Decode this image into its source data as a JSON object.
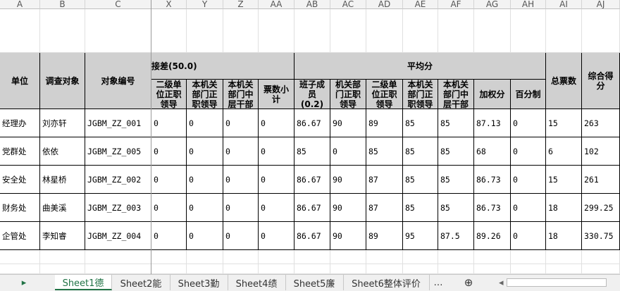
{
  "column_letters": [
    "A",
    "B",
    "C",
    "X",
    "Y",
    "Z",
    "AA",
    "AB",
    "AC",
    "AD",
    "AE",
    "AF",
    "AG",
    "AH",
    "AI",
    "AJ"
  ],
  "headers": {
    "unit": "单位",
    "subject": "调查对象",
    "code": "对象编号",
    "group_left": "接差(50.0)",
    "group_avg": "平均分",
    "total_votes": "总票数",
    "overall": "综合得分",
    "sub": [
      "二级单位正职领导",
      "本机关部门正职领导",
      "本机关部门中层干部",
      "票数小计",
      "班子成员(0.2)",
      "机关部门正职领导",
      "二级单位正职领导",
      "本机关部门正职领导",
      "本机关部门中层干部",
      "加权分",
      "百分制"
    ]
  },
  "rows": [
    [
      "经理办",
      "刘亦轩",
      "JGBM_ZZ_001",
      0,
      0,
      0,
      0,
      86.67,
      90,
      89,
      85,
      85,
      87.13,
      0,
      15,
      263
    ],
    [
      "党群处",
      "依依",
      "JGBM_ZZ_005",
      0,
      0,
      0,
      0,
      85,
      0,
      85,
      85,
      85,
      68,
      0,
      6,
      102
    ],
    [
      "安全处",
      "林星桥",
      "JGBM_ZZ_002",
      0,
      0,
      0,
      0,
      86.67,
      90,
      87,
      85,
      85,
      86.73,
      0,
      15,
      261
    ],
    [
      "财务处",
      "曲美溪",
      "JGBM_ZZ_003",
      0,
      0,
      0,
      0,
      86.67,
      90,
      87,
      85,
      85,
      86.73,
      0,
      18,
      299.25
    ],
    [
      "企管处",
      "李知睿",
      "JGBM_ZZ_004",
      0,
      0,
      0,
      0,
      86.67,
      90,
      89,
      95,
      87.5,
      89.26,
      0,
      18,
      330.75
    ]
  ],
  "tabs": [
    "Sheet1德",
    "Sheet2能",
    "Sheet3勤",
    "Sheet4绩",
    "Sheet5廉",
    "Sheet6整体评价"
  ],
  "active_tab": 0
}
